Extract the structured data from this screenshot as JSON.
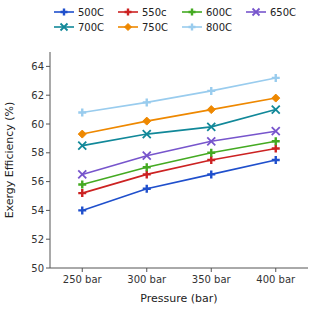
{
  "chart_data": {
    "type": "line",
    "xlabel": "Pressure (bar)",
    "ylabel": "Exergy Efficiency (%)",
    "x": [
      250,
      300,
      350,
      400
    ],
    "xlim": [
      225,
      425
    ],
    "xticks": [
      {
        "value": 250,
        "label": "250 bar"
      },
      {
        "value": 300,
        "label": "300 bar"
      },
      {
        "value": 350,
        "label": "350 bar"
      },
      {
        "value": 400,
        "label": "400 bar"
      }
    ],
    "ylim": [
      50,
      65
    ],
    "yticks": [
      50,
      52,
      54,
      56,
      58,
      60,
      62,
      64
    ],
    "grid": false,
    "legend": "top",
    "series": [
      {
        "name": "500C",
        "color": "#1f4fcc",
        "marker": "plus",
        "values": [
          54.0,
          55.5,
          56.5,
          57.5
        ]
      },
      {
        "name": "550c",
        "color": "#cc2222",
        "marker": "plus",
        "values": [
          55.2,
          56.5,
          57.5,
          58.3
        ]
      },
      {
        "name": "600C",
        "color": "#44aa22",
        "marker": "plus",
        "values": [
          55.8,
          57.0,
          58.0,
          58.8
        ]
      },
      {
        "name": "650C",
        "color": "#7755cc",
        "marker": "x",
        "values": [
          56.5,
          57.8,
          58.8,
          59.5
        ]
      },
      {
        "name": "700C",
        "color": "#118899",
        "marker": "x",
        "values": [
          58.5,
          59.3,
          59.8,
          61.0
        ]
      },
      {
        "name": "750C",
        "color": "#ee8800",
        "marker": "diamond",
        "values": [
          59.3,
          60.2,
          61.0,
          61.8
        ]
      },
      {
        "name": "800C",
        "color": "#99ccee",
        "marker": "plus",
        "values": [
          60.8,
          61.5,
          62.3,
          63.2
        ]
      }
    ]
  }
}
